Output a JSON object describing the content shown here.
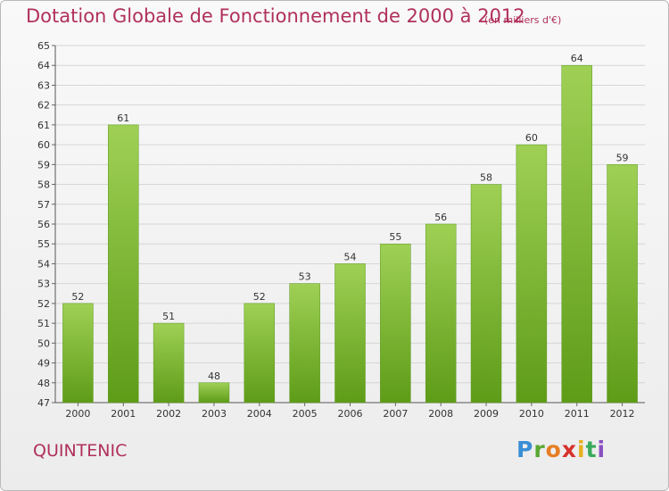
{
  "title": "Dotation Globale de Fonctionnement de 2000 à 2012",
  "subtitle": "(en milliers d'€)",
  "commune": "QUINTENIC",
  "logo": "Proxiti",
  "colors": {
    "title": "#b0305c",
    "bar_top": "#9fd055",
    "bar_bottom": "#5e9c18",
    "grid": "#d6d6d6"
  },
  "chart_data": {
    "type": "bar",
    "categories": [
      "2000",
      "2001",
      "2002",
      "2003",
      "2004",
      "2005",
      "2006",
      "2007",
      "2008",
      "2009",
      "2010",
      "2011",
      "2012"
    ],
    "values": [
      52,
      61,
      51,
      48,
      52,
      53,
      54,
      55,
      56,
      58,
      60,
      64,
      59
    ],
    "ylim": [
      47,
      65
    ],
    "yticks": [
      47,
      48,
      49,
      50,
      51,
      52,
      53,
      54,
      55,
      56,
      57,
      58,
      59,
      60,
      61,
      62,
      63,
      64,
      65
    ],
    "grid": true,
    "xlabel": "",
    "ylabel": ""
  }
}
